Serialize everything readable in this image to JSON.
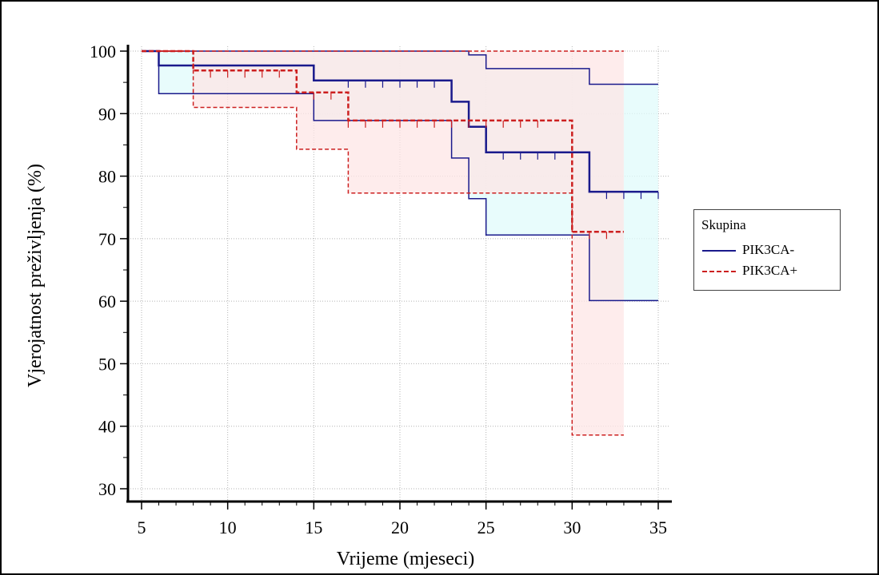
{
  "chart_data": {
    "type": "line",
    "subtype": "kaplan-meier",
    "title": "",
    "xlabel": "Vrijeme (mjeseci)",
    "ylabel": "Vjerojatnost preživljenja (%)",
    "xlim": [
      5,
      35
    ],
    "ylim": [
      30,
      100
    ],
    "xticks": [
      5,
      10,
      15,
      20,
      25,
      30,
      35
    ],
    "yticks": [
      30,
      40,
      50,
      60,
      70,
      80,
      90,
      100
    ],
    "x_tick_labels": [
      "5",
      "10",
      "15",
      "20",
      "25",
      "30",
      "35"
    ],
    "y_tick_labels": [
      "30",
      "40",
      "50",
      "60",
      "70",
      "80",
      "90",
      "100"
    ],
    "grid": true,
    "legend": {
      "title": "Skupina",
      "placement": "right"
    },
    "series": [
      {
        "name": "PIK3CA-",
        "color": "#1a1a8c",
        "line_style": "solid",
        "band_color": "#e0fbfb",
        "survival": [
          [
            5,
            100
          ],
          [
            6,
            97.7
          ],
          [
            15,
            95.3
          ],
          [
            23,
            91.9
          ],
          [
            24,
            87.9
          ],
          [
            25,
            83.8
          ],
          [
            31,
            77.5
          ],
          [
            35,
            77.5
          ]
        ],
        "ci_upper": [
          [
            5,
            100
          ],
          [
            24,
            100
          ],
          [
            24,
            99.4
          ],
          [
            25,
            97.2
          ],
          [
            31,
            94.7
          ],
          [
            35,
            94.7
          ]
        ],
        "ci_lower": [
          [
            5,
            100
          ],
          [
            6,
            93.2
          ],
          [
            15,
            88.9
          ],
          [
            23,
            82.9
          ],
          [
            24,
            76.4
          ],
          [
            25,
            70.6
          ],
          [
            31,
            60.1
          ],
          [
            35,
            60.1
          ]
        ],
        "censored": [
          [
            17,
            95.3
          ],
          [
            18,
            95.3
          ],
          [
            19,
            95.3
          ],
          [
            20,
            95.3
          ],
          [
            21,
            95.3
          ],
          [
            22,
            95.3
          ],
          [
            26,
            83.8
          ],
          [
            27,
            83.8
          ],
          [
            28,
            83.8
          ],
          [
            29,
            83.8
          ],
          [
            32,
            77.5
          ],
          [
            33,
            77.5
          ],
          [
            34,
            77.5
          ],
          [
            35,
            77.5
          ]
        ]
      },
      {
        "name": "PIK3CA+",
        "color": "#cc1f1f",
        "line_style": "dashed",
        "band_color": "#fde6e6",
        "survival": [
          [
            5,
            100
          ],
          [
            8,
            96.9
          ],
          [
            14,
            93.4
          ],
          [
            17,
            88.9
          ],
          [
            30,
            71.1
          ],
          [
            33,
            71.1
          ]
        ],
        "ci_upper": [
          [
            5,
            100
          ],
          [
            33,
            100
          ]
        ],
        "ci_lower": [
          [
            5,
            100
          ],
          [
            8,
            91.0
          ],
          [
            14,
            84.3
          ],
          [
            17,
            77.3
          ],
          [
            30,
            38.6
          ],
          [
            33,
            38.6
          ]
        ],
        "censored": [
          [
            9,
            96.9
          ],
          [
            10,
            96.9
          ],
          [
            11,
            96.9
          ],
          [
            12,
            96.9
          ],
          [
            13,
            96.9
          ],
          [
            15,
            93.4
          ],
          [
            16,
            93.4
          ],
          [
            17,
            88.9
          ],
          [
            18,
            88.9
          ],
          [
            19,
            88.9
          ],
          [
            20,
            88.9
          ],
          [
            21,
            88.9
          ],
          [
            22,
            88.9
          ],
          [
            23,
            88.9
          ],
          [
            24,
            88.9
          ],
          [
            25,
            88.9
          ],
          [
            26,
            88.9
          ],
          [
            27,
            88.9
          ],
          [
            28,
            88.9
          ],
          [
            31,
            71.1
          ],
          [
            32,
            71.1
          ]
        ]
      }
    ]
  }
}
